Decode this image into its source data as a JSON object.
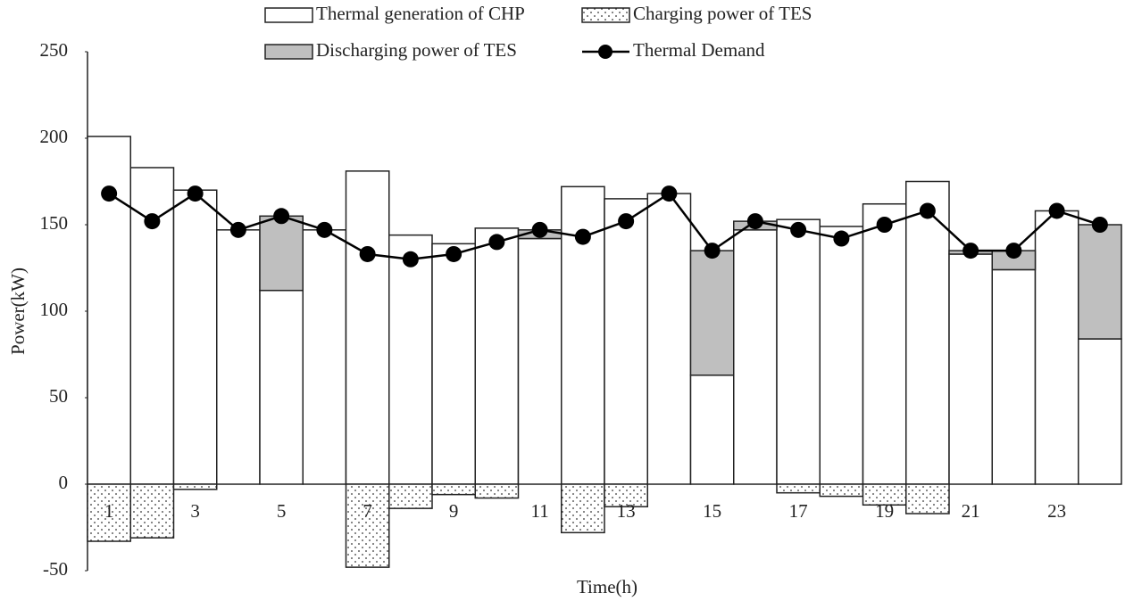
{
  "chart_data": {
    "type": "bar",
    "x_label": "Time(h)",
    "y_label": "Power(kW)",
    "categories": [
      "1",
      null,
      "3",
      null,
      "5",
      null,
      "7",
      null,
      "9",
      null,
      "11",
      null,
      "13",
      null,
      "15",
      null,
      "17",
      null,
      "19",
      null,
      "21",
      null,
      "23",
      null
    ],
    "series": [
      {
        "name": "Thermal generation of CHP",
        "type": "bar",
        "color": "#ffffff",
        "values": [
          201,
          183,
          170,
          147,
          112,
          147,
          181,
          144,
          139,
          148,
          142,
          172,
          165,
          168,
          63,
          147,
          153,
          149,
          162,
          175,
          133,
          124,
          158,
          84
        ]
      },
      {
        "name": "Charging power of TES",
        "type": "bar",
        "color": "#ffffff",
        "pattern": "dots",
        "values": [
          -33,
          -31,
          -3,
          0,
          0,
          0,
          -48,
          -14,
          -6,
          -8,
          0,
          -28,
          -13,
          0,
          0,
          0,
          -5,
          -7,
          -12,
          -17,
          0,
          0,
          0,
          0
        ]
      },
      {
        "name": "Discharging power of TES",
        "type": "bar",
        "color": "#bfbfbf",
        "values": [
          0,
          0,
          0,
          0,
          43,
          0,
          0,
          0,
          0,
          0,
          5,
          0,
          0,
          0,
          72,
          5,
          0,
          0,
          0,
          0,
          2,
          11,
          0,
          66
        ]
      },
      {
        "name": "Thermal Demand",
        "type": "line",
        "color": "#000000",
        "values": [
          168,
          152,
          168,
          147,
          155,
          147,
          133,
          130,
          133,
          140,
          147,
          143,
          152,
          168,
          135,
          152,
          147,
          142,
          150,
          158,
          135,
          135,
          158,
          150
        ]
      }
    ],
    "ylim": [
      -50,
      250
    ],
    "yticks": [
      -50,
      0,
      50,
      100,
      150,
      200,
      250
    ],
    "grid": false
  }
}
